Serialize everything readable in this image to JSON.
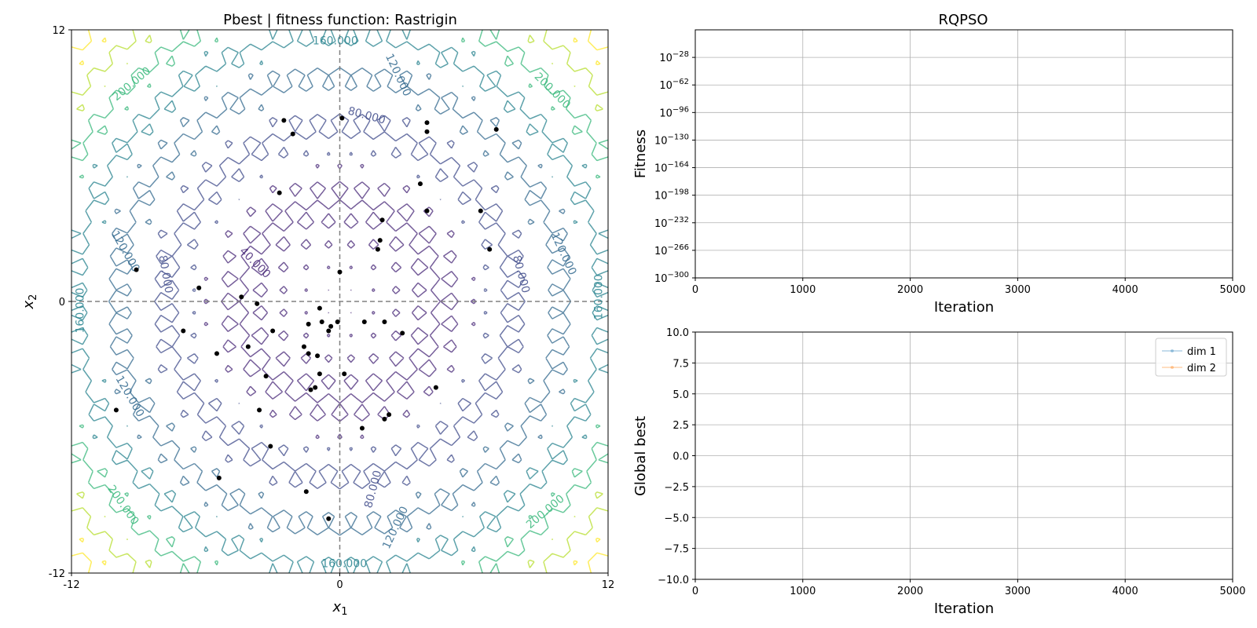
{
  "chart_data": [
    {
      "type": "contour",
      "title": "Pbest | fitness function: Rastrigin",
      "xlabel": "x",
      "xlabel_sub": "1",
      "ylabel": "x",
      "ylabel_sub": "2",
      "xlim": [
        -12,
        12
      ],
      "ylim": [
        -12,
        12
      ],
      "xticks": [
        "-12",
        "0",
        "12"
      ],
      "yticks": [
        "-12",
        "0",
        "12"
      ],
      "contour_levels": [
        40,
        80,
        120,
        160,
        200
      ],
      "contour_colors": [
        "#482878",
        "#3e4a89",
        "#31688e",
        "#26828e",
        "#35b779",
        "#b5de2b",
        "#fde725"
      ],
      "contour_labels": [
        {
          "text": "160.000",
          "x": -0.2,
          "y": 11.5,
          "angle": 0,
          "level": 160
        },
        {
          "text": "160.000",
          "x": 0.2,
          "y": -11.6,
          "angle": 0,
          "level": 160
        },
        {
          "text": "160.000",
          "x": -11.6,
          "y": -0.4,
          "angle": -90,
          "level": 160
        },
        {
          "text": "160.000",
          "x": 11.6,
          "y": 0.2,
          "angle": -90,
          "level": 160
        },
        {
          "text": "120.000",
          "x": 2.6,
          "y": 10.0,
          "angle": 65,
          "level": 120
        },
        {
          "text": "120.000",
          "x": -9.6,
          "y": 2.2,
          "angle": 60,
          "level": 120
        },
        {
          "text": "120.000",
          "x": 10.0,
          "y": 2.1,
          "angle": 65,
          "level": 120
        },
        {
          "text": "120.000",
          "x": -9.4,
          "y": -4.2,
          "angle": 60,
          "level": 120
        },
        {
          "text": "120.000",
          "x": 2.5,
          "y": -10.0,
          "angle": -65,
          "level": 120
        },
        {
          "text": "80.000",
          "x": 1.2,
          "y": 8.2,
          "angle": 15,
          "level": 80
        },
        {
          "text": "80.000",
          "x": -7.8,
          "y": 1.2,
          "angle": 80,
          "level": 80
        },
        {
          "text": "80.000",
          "x": 8.1,
          "y": 1.2,
          "angle": 75,
          "level": 80
        },
        {
          "text": "80.000",
          "x": 1.5,
          "y": -8.3,
          "angle": -75,
          "level": 80
        },
        {
          "text": "40.000",
          "x": -3.8,
          "y": 1.7,
          "angle": 45,
          "level": 40
        },
        {
          "text": "200.000",
          "x": -9.3,
          "y": 9.6,
          "angle": -40,
          "level": 200
        },
        {
          "text": "200.000",
          "x": 9.5,
          "y": 9.3,
          "angle": 45,
          "level": 200
        },
        {
          "text": "200.000",
          "x": -9.7,
          "y": -9.0,
          "angle": 55,
          "level": 200
        },
        {
          "text": "200.000",
          "x": 9.2,
          "y": -9.3,
          "angle": -40,
          "level": 200
        }
      ],
      "points": [
        [
          -2.5,
          8.0
        ],
        [
          0.1,
          8.1
        ],
        [
          -2.1,
          7.4
        ],
        [
          3.9,
          7.9
        ],
        [
          3.9,
          7.5
        ],
        [
          7.0,
          7.6
        ],
        [
          3.6,
          5.2
        ],
        [
          -2.7,
          4.8
        ],
        [
          3.9,
          4.0
        ],
        [
          6.3,
          4.0
        ],
        [
          1.9,
          3.6
        ],
        [
          1.8,
          2.7
        ],
        [
          1.7,
          2.3
        ],
        [
          6.7,
          2.3
        ],
        [
          -9.1,
          1.4
        ],
        [
          0.0,
          1.3
        ],
        [
          -6.3,
          0.6
        ],
        [
          -4.4,
          0.2
        ],
        [
          -3.7,
          -0.1
        ],
        [
          -0.9,
          -0.3
        ],
        [
          -7.0,
          -1.3
        ],
        [
          -3.0,
          -1.3
        ],
        [
          -1.4,
          -1.0
        ],
        [
          -0.8,
          -0.9
        ],
        [
          -0.4,
          -1.1
        ],
        [
          -0.1,
          -0.9
        ],
        [
          -0.5,
          -1.3
        ],
        [
          1.1,
          -0.9
        ],
        [
          2.0,
          -0.9
        ],
        [
          2.8,
          -1.4
        ],
        [
          -5.5,
          -2.3
        ],
        [
          -4.1,
          -2.0
        ],
        [
          -1.6,
          -2.0
        ],
        [
          -1.4,
          -2.3
        ],
        [
          -1.0,
          -2.4
        ],
        [
          -0.9,
          -3.2
        ],
        [
          0.2,
          -3.2
        ],
        [
          -3.3,
          -3.3
        ],
        [
          -1.3,
          -3.9
        ],
        [
          -1.1,
          -3.8
        ],
        [
          4.3,
          -3.8
        ],
        [
          -10.0,
          -4.8
        ],
        [
          -3.6,
          -4.8
        ],
        [
          2.2,
          -5.0
        ],
        [
          2.0,
          -5.2
        ],
        [
          1.0,
          -5.6
        ],
        [
          -3.1,
          -6.4
        ],
        [
          -5.4,
          -7.8
        ],
        [
          -1.5,
          -8.4
        ],
        [
          -0.5,
          -9.6
        ]
      ]
    },
    {
      "type": "line",
      "title": "RQPSO",
      "xlabel": "Iteration",
      "ylabel": "Fitness",
      "xlim": [
        0,
        5000
      ],
      "xticks": [
        "0",
        "1000",
        "2000",
        "3000",
        "4000",
        "5000"
      ],
      "yscale": "log",
      "ylim_exponent": [
        -300,
        6
      ],
      "ytick_base": "10",
      "ytick_exponents": [
        "−28",
        "−62",
        "−96",
        "−130",
        "−164",
        "−198",
        "−232",
        "−266",
        "−300"
      ],
      "ytick_values": [
        -28,
        -62,
        -96,
        -130,
        -164,
        -198,
        -232,
        -266,
        -300
      ],
      "grid": true,
      "series": []
    },
    {
      "type": "line",
      "title": "",
      "xlabel": "Iteration",
      "ylabel": "Global best",
      "xlim": [
        0,
        5000
      ],
      "ylim": [
        -10,
        10
      ],
      "xticks": [
        "0",
        "1000",
        "2000",
        "3000",
        "4000",
        "5000"
      ],
      "yticks": [
        "10.0",
        "7.5",
        "5.0",
        "2.5",
        "0.0",
        "−2.5",
        "−5.0",
        "−7.5",
        "−10.0"
      ],
      "ytick_values": [
        10,
        7.5,
        5,
        2.5,
        0,
        -2.5,
        -5,
        -7.5,
        -10
      ],
      "grid": true,
      "legend_position": "top-right",
      "series": [
        {
          "name": "dim 1",
          "color": "#1f77b4",
          "values": []
        },
        {
          "name": "dim 2",
          "color": "#ff7f0e",
          "values": []
        }
      ]
    }
  ]
}
